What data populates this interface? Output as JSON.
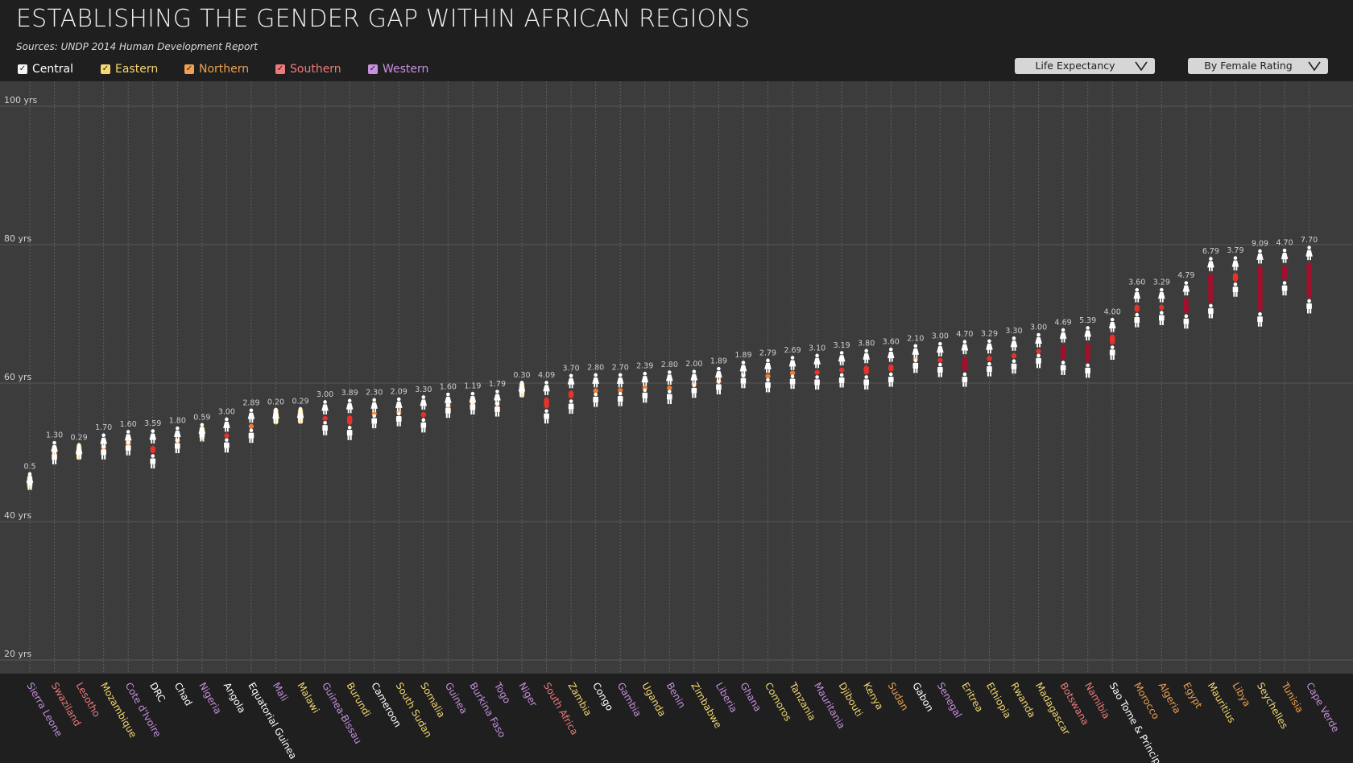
{
  "header": {
    "title": "ESTABLISHING THE GENDER GAP WITHIN AFRICAN REGIONS",
    "subtitle": "Sources: UNDP 2014 Human Development Report"
  },
  "legend": [
    {
      "label": "Central",
      "color": "#f4f4f4",
      "text_color": "#ffffff",
      "checked": true
    },
    {
      "label": "Eastern",
      "color": "#f5d870",
      "text_color": "#f5d870",
      "checked": true
    },
    {
      "label": "Northern",
      "color": "#f0a050",
      "text_color": "#f0a050",
      "checked": true
    },
    {
      "label": "Southern",
      "color": "#f07a7a",
      "text_color": "#f07a7a",
      "checked": true
    },
    {
      "label": "Western",
      "color": "#c990e0",
      "text_color": "#c990e0",
      "checked": true
    }
  ],
  "controls": {
    "metric_select": "Life Expectancy",
    "sort_select": "By Female Rating"
  },
  "colors": {
    "background": "#1f1f1f",
    "plot_background": "#3c3c3c",
    "gap_small": "#f5c242",
    "gap_mid": "#f07c2f",
    "gap_large": "#e8312b",
    "gap_very_large": "#a0102c"
  },
  "icons": {
    "male": "male-figure-icon",
    "female": "female-figure-icon"
  },
  "chart_data": {
    "type": "dumbbell",
    "ylim": [
      20,
      100
    ],
    "y_ticks": [
      {
        "value": 100,
        "label": "100 yrs"
      },
      {
        "value": 80,
        "label": "80 yrs"
      },
      {
        "value": 60,
        "label": "60 yrs"
      },
      {
        "value": 40,
        "label": "40 yrs"
      },
      {
        "value": 20,
        "label": "20 yrs"
      }
    ],
    "series": [
      {
        "name": "Female",
        "key": "female"
      },
      {
        "name": "Male",
        "key": "male"
      }
    ],
    "countries": [
      {
        "name": "Sierra Leone",
        "region": "Western",
        "female": 46.0,
        "male": 45.5,
        "gap": "0.5"
      },
      {
        "name": "Swaziland",
        "region": "Southern",
        "female": 50.5,
        "male": 49.2,
        "gap": "1.30"
      },
      {
        "name": "Lesotho",
        "region": "Southern",
        "female": 50.2,
        "male": 49.9,
        "gap": "0.29"
      },
      {
        "name": "Mozambique",
        "region": "Eastern",
        "female": 51.6,
        "male": 49.9,
        "gap": "1.70"
      },
      {
        "name": "Cote d'Ivoire",
        "region": "Western",
        "female": 52.1,
        "male": 50.5,
        "gap": "1.60"
      },
      {
        "name": "DRC",
        "region": "Central",
        "female": 52.2,
        "male": 48.6,
        "gap": "3.59"
      },
      {
        "name": "Chad",
        "region": "Central",
        "female": 52.6,
        "male": 50.8,
        "gap": "1.80"
      },
      {
        "name": "Nigeria",
        "region": "Western",
        "female": 53.1,
        "male": 52.5,
        "gap": "0.59"
      },
      {
        "name": "Angola",
        "region": "Central",
        "female": 53.9,
        "male": 50.9,
        "gap": "3.00"
      },
      {
        "name": "Equatorial Guinea",
        "region": "Central",
        "female": 55.2,
        "male": 52.3,
        "gap": "2.89"
      },
      {
        "name": "Mali",
        "region": "Western",
        "female": 55.3,
        "male": 55.1,
        "gap": "0.20"
      },
      {
        "name": "Malawi",
        "region": "Eastern",
        "female": 55.4,
        "male": 55.1,
        "gap": "0.29"
      },
      {
        "name": "Guinea-Bissau",
        "region": "Western",
        "female": 56.4,
        "male": 53.4,
        "gap": "3.00"
      },
      {
        "name": "Burundi",
        "region": "Eastern",
        "female": 56.6,
        "male": 52.7,
        "gap": "3.89"
      },
      {
        "name": "Cameroon",
        "region": "Central",
        "female": 56.7,
        "male": 54.4,
        "gap": "2.30"
      },
      {
        "name": "South Sudan",
        "region": "Eastern",
        "female": 56.8,
        "male": 54.7,
        "gap": "2.09"
      },
      {
        "name": "Somalia",
        "region": "Eastern",
        "female": 57.1,
        "male": 53.8,
        "gap": "3.30"
      },
      {
        "name": "Guinea",
        "region": "Western",
        "female": 57.5,
        "male": 55.9,
        "gap": "1.60"
      },
      {
        "name": "Burkina Faso",
        "region": "Western",
        "female": 57.6,
        "male": 56.4,
        "gap": "1.19"
      },
      {
        "name": "Togo",
        "region": "Western",
        "female": 57.9,
        "male": 56.1,
        "gap": "1.79"
      },
      {
        "name": "Niger",
        "region": "Western",
        "female": 59.2,
        "male": 58.9,
        "gap": "0.30"
      },
      {
        "name": "South Africa",
        "region": "Southern",
        "female": 59.2,
        "male": 55.1,
        "gap": "4.09"
      },
      {
        "name": "Zambia",
        "region": "Eastern",
        "female": 60.2,
        "male": 56.5,
        "gap": "3.70"
      },
      {
        "name": "Congo",
        "region": "Central",
        "female": 60.3,
        "male": 57.5,
        "gap": "2.80"
      },
      {
        "name": "Gambia",
        "region": "Western",
        "female": 60.3,
        "male": 57.6,
        "gap": "2.70"
      },
      {
        "name": "Uganda",
        "region": "Eastern",
        "female": 60.5,
        "male": 58.1,
        "gap": "2.39"
      },
      {
        "name": "Benin",
        "region": "Western",
        "female": 60.7,
        "male": 57.9,
        "gap": "2.80"
      },
      {
        "name": "Zimbabwe",
        "region": "Eastern",
        "female": 60.8,
        "male": 58.8,
        "gap": "2.00"
      },
      {
        "name": "Liberia",
        "region": "Western",
        "female": 61.2,
        "male": 59.3,
        "gap": "1.89"
      },
      {
        "name": "Ghana",
        "region": "Western",
        "female": 62.1,
        "male": 60.2,
        "gap": "1.89"
      },
      {
        "name": "Comoros",
        "region": "Eastern",
        "female": 62.4,
        "male": 59.6,
        "gap": "2.79"
      },
      {
        "name": "Tanzania",
        "region": "Eastern",
        "female": 62.8,
        "male": 60.1,
        "gap": "2.69"
      },
      {
        "name": "Mauritania",
        "region": "Western",
        "female": 63.1,
        "male": 60.0,
        "gap": "3.10"
      },
      {
        "name": "Djibouti",
        "region": "Eastern",
        "female": 63.5,
        "male": 60.3,
        "gap": "3.19"
      },
      {
        "name": "Kenya",
        "region": "Eastern",
        "female": 63.8,
        "male": 60.0,
        "gap": "3.80"
      },
      {
        "name": "Sudan",
        "region": "Northern",
        "female": 64.0,
        "male": 60.4,
        "gap": "3.60"
      },
      {
        "name": "Gabon",
        "region": "Central",
        "female": 64.5,
        "male": 62.4,
        "gap": "2.10"
      },
      {
        "name": "Senegal",
        "region": "Western",
        "female": 64.8,
        "male": 61.8,
        "gap": "3.00"
      },
      {
        "name": "Eritrea",
        "region": "Eastern",
        "female": 65.1,
        "male": 60.4,
        "gap": "4.70"
      },
      {
        "name": "Ethiopia",
        "region": "Eastern",
        "female": 65.2,
        "male": 61.9,
        "gap": "3.29"
      },
      {
        "name": "Rwanda",
        "region": "Eastern",
        "female": 65.6,
        "male": 62.3,
        "gap": "3.30"
      },
      {
        "name": "Madagascar",
        "region": "Eastern",
        "female": 66.1,
        "male": 63.1,
        "gap": "3.00"
      },
      {
        "name": "Botswana",
        "region": "Southern",
        "female": 66.8,
        "male": 62.1,
        "gap": "4.69"
      },
      {
        "name": "Namibia",
        "region": "Southern",
        "female": 67.1,
        "male": 61.7,
        "gap": "5.39"
      },
      {
        "name": "Sao Tome & Principe",
        "region": "Central",
        "female": 68.3,
        "male": 64.3,
        "gap": "4.00"
      },
      {
        "name": "Morocco",
        "region": "Northern",
        "female": 72.6,
        "male": 69.0,
        "gap": "3.60"
      },
      {
        "name": "Algeria",
        "region": "Northern",
        "female": 72.6,
        "male": 69.3,
        "gap": "3.29"
      },
      {
        "name": "Egypt",
        "region": "Northern",
        "female": 73.6,
        "male": 68.8,
        "gap": "4.79"
      },
      {
        "name": "Mauritius",
        "region": "Eastern",
        "female": 77.1,
        "male": 70.3,
        "gap": "6.79"
      },
      {
        "name": "Libya",
        "region": "Northern",
        "female": 77.2,
        "male": 73.4,
        "gap": "3.79"
      },
      {
        "name": "Seychelles",
        "region": "Eastern",
        "female": 78.2,
        "male": 69.1,
        "gap": "9.09"
      },
      {
        "name": "Tunisia",
        "region": "Northern",
        "female": 78.3,
        "male": 73.6,
        "gap": "4.70"
      },
      {
        "name": "Cape Verde",
        "region": "Western",
        "female": 78.7,
        "male": 71.0,
        "gap": "7.70"
      }
    ]
  }
}
